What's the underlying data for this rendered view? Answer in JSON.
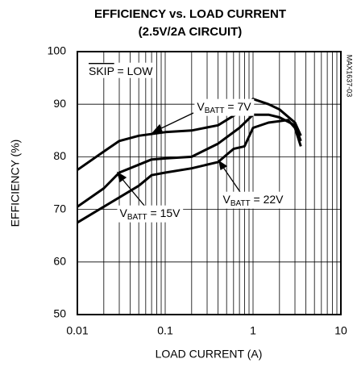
{
  "chart_data": {
    "type": "line",
    "title": "EFFICIENCY vs. LOAD CURRENT",
    "subtitle": "(2.5V/2A CIRCUIT)",
    "x_label": "LOAD CURRENT (A)",
    "y_label": "EFFICIENCY (%)",
    "xscale": "log",
    "grid": true,
    "minor_grid": true,
    "xlim": [
      0.01,
      10
    ],
    "xticks": [
      0.01,
      0.1,
      1,
      10
    ],
    "ylim": [
      50,
      100
    ],
    "yticks": [
      50,
      60,
      70,
      80,
      90,
      100
    ],
    "annotations": [
      "SKIP = LOW",
      "MAX1637-03"
    ],
    "series": [
      {
        "name": "VBATT = 7V",
        "color": "#000000",
        "x": [
          0.01,
          0.02,
          0.03,
          0.05,
          0.1,
          0.2,
          0.4,
          0.7,
          1,
          1.5,
          2,
          3,
          3.5
        ],
        "values": [
          77.5,
          81,
          83,
          84,
          84.7,
          85,
          86,
          88.5,
          91,
          90,
          89,
          86.5,
          84
        ]
      },
      {
        "name": "VBATT = 15V",
        "color": "#000000",
        "x": [
          0.01,
          0.02,
          0.03,
          0.05,
          0.07,
          0.1,
          0.2,
          0.4,
          0.7,
          1,
          1.5,
          2,
          3,
          3.5
        ],
        "values": [
          70.5,
          74,
          77,
          78.5,
          79.5,
          79.7,
          80,
          82.5,
          85.5,
          88,
          88,
          87.5,
          86,
          83
        ]
      },
      {
        "name": "VBATT = 22V",
        "color": "#000000",
        "x": [
          0.01,
          0.02,
          0.05,
          0.07,
          0.1,
          0.2,
          0.4,
          0.6,
          0.8,
          1,
          1.5,
          2.5,
          3,
          3.5
        ],
        "values": [
          67.5,
          70.5,
          74.5,
          76.5,
          77,
          77.8,
          79,
          81.5,
          82,
          85.5,
          86.5,
          87,
          85.5,
          82
        ]
      }
    ]
  }
}
